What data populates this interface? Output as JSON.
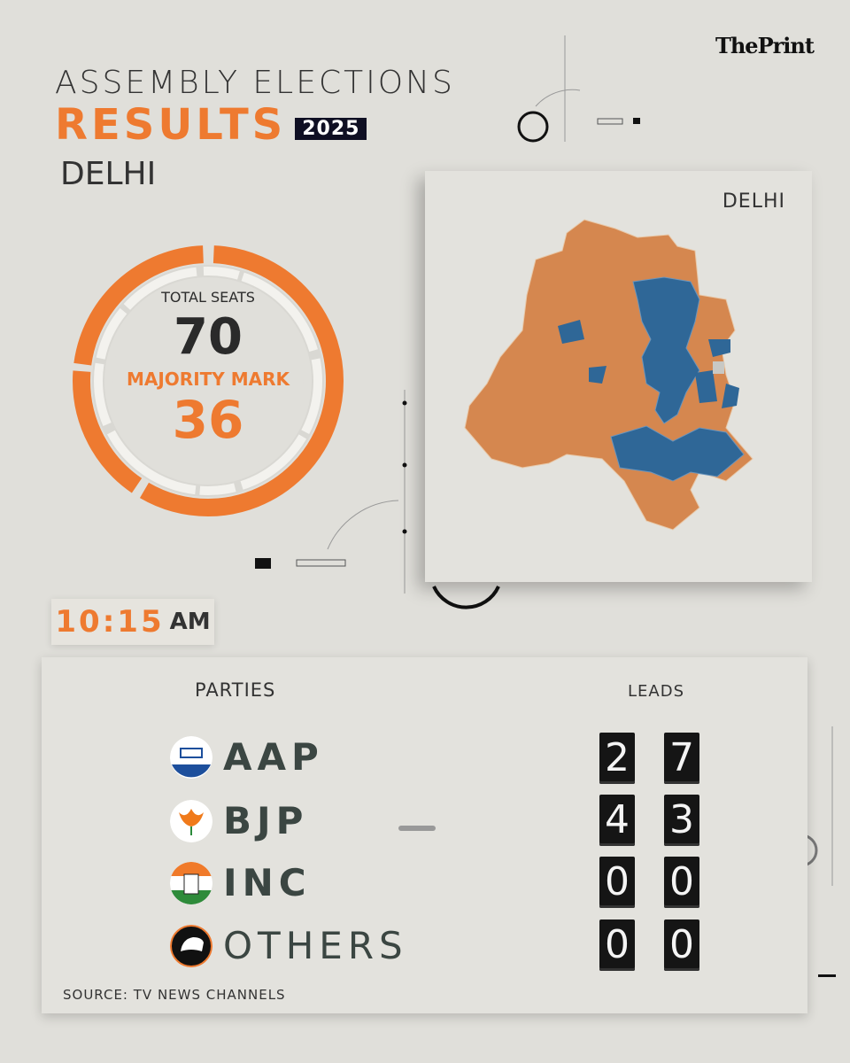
{
  "brand": "ThePrint",
  "title": {
    "line1": "ASSEMBLY ELECTIONS",
    "line2": "RESULTS",
    "year": "2025",
    "state": "DELHI"
  },
  "seats": {
    "total_label": "TOTAL SEATS",
    "total": "70",
    "majority_label": "MAJORITY MARK",
    "majority": "36"
  },
  "map": {
    "label": "DELHI",
    "colors": {
      "AAP": "#2f6797",
      "BJP": "#d5874f",
      "other": "#c8c8c4"
    }
  },
  "time": {
    "hm": "10:15",
    "ampm": "AM"
  },
  "results": {
    "parties_header": "PARTIES",
    "leads_header": "LEADS",
    "rows": [
      {
        "party": "AAP",
        "leads": "27",
        "d1": "2",
        "d2": "7",
        "icon": "aap-logo-icon"
      },
      {
        "party": "BJP",
        "leads": "43",
        "d1": "4",
        "d2": "3",
        "icon": "bjp-lotus-icon"
      },
      {
        "party": "INC",
        "leads": "00",
        "d1": "0",
        "d2": "0",
        "icon": "inc-hand-icon"
      },
      {
        "party": "OTHERS",
        "leads": "00",
        "d1": "0",
        "d2": "0",
        "icon": "others-cap-icon"
      }
    ],
    "source": "SOURCE: TV NEWS CHANNELS"
  },
  "colors": {
    "accent": "#ee7a30",
    "background": "#e0dfda"
  }
}
